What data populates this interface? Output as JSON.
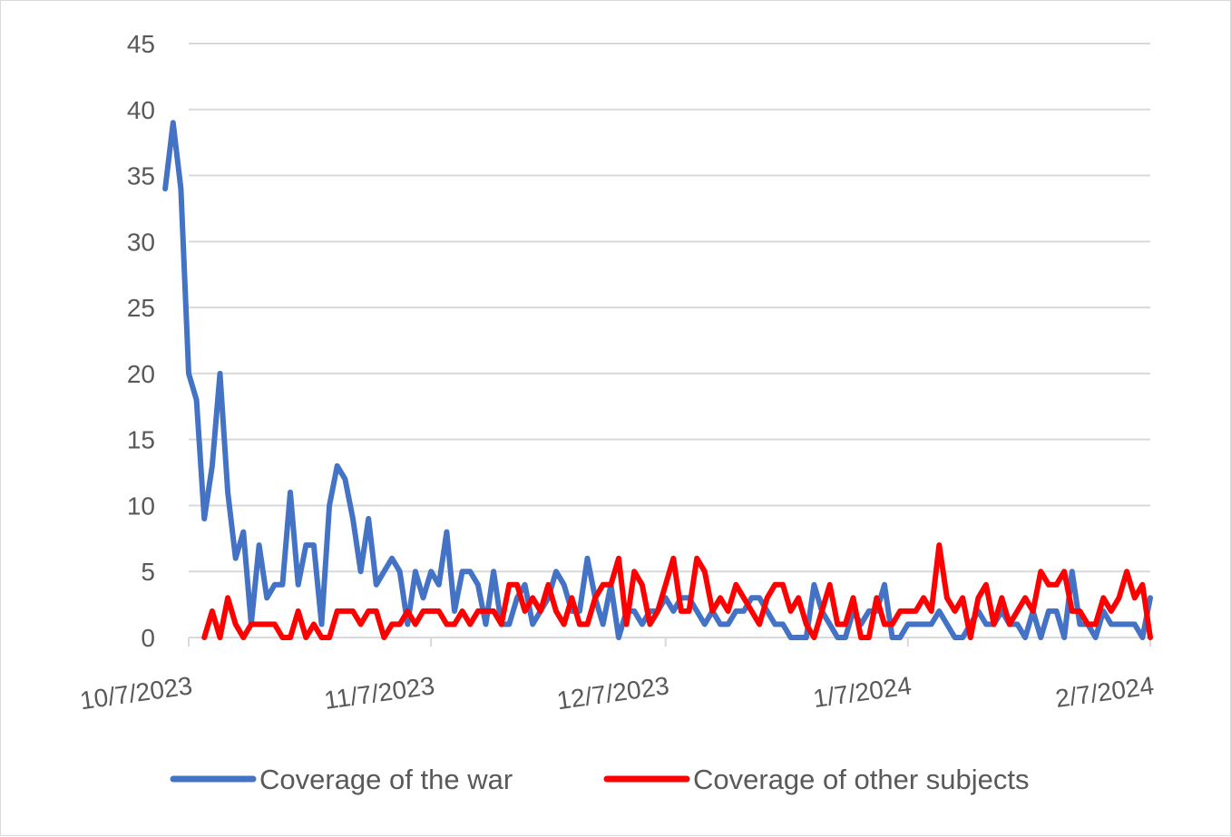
{
  "chart_data": {
    "type": "line",
    "title": "",
    "xlabel": "",
    "ylabel": "",
    "ylim": [
      0,
      45
    ],
    "yticks": [
      0,
      5,
      10,
      15,
      20,
      25,
      30,
      35,
      40,
      45
    ],
    "x_start": "10/7/2023",
    "x_end": "2/7/2024",
    "xticks": [
      "10/7/2023",
      "11/7/2023",
      "12/7/2023",
      "1/7/2024",
      "2/7/2024"
    ],
    "grid": "horizontal",
    "legend_position": "bottom",
    "series": [
      {
        "name": "Coverage of the war",
        "color": "#4472C4",
        "values": [
          34,
          39,
          34,
          20,
          18,
          9,
          13,
          20,
          11,
          6,
          8,
          1,
          7,
          3,
          4,
          4,
          11,
          4,
          7,
          7,
          1,
          10,
          13,
          12,
          9,
          5,
          9,
          4,
          5,
          6,
          5,
          1,
          5,
          3,
          5,
          4,
          8,
          2,
          5,
          5,
          4,
          1,
          5,
          1,
          1,
          3,
          4,
          1,
          2,
          3,
          5,
          4,
          2,
          2,
          6,
          3,
          1,
          4,
          0,
          2,
          2,
          1,
          2,
          2,
          3,
          2,
          3,
          3,
          2,
          1,
          2,
          1,
          1,
          2,
          2,
          3,
          3,
          2,
          1,
          1,
          0,
          0,
          0,
          4,
          2,
          1,
          0,
          0,
          2,
          1,
          2,
          2,
          4,
          0,
          0,
          1,
          1,
          1,
          1,
          2,
          1,
          0,
          0,
          1,
          2,
          1,
          1,
          2,
          1,
          1,
          0,
          2,
          0,
          2,
          2,
          0,
          5,
          1,
          1,
          0,
          2,
          1,
          1,
          1,
          1,
          0,
          3
        ],
        "values_end": "2/7/2024"
      },
      {
        "name": "Coverage of other subjects",
        "color": "#FF0000",
        "values": [
          0,
          2,
          0,
          3,
          1,
          0,
          1,
          1,
          1,
          1,
          0,
          0,
          2,
          0,
          1,
          0,
          0,
          2,
          2,
          2,
          1,
          2,
          2,
          0,
          1,
          1,
          2,
          1,
          2,
          2,
          2,
          1,
          1,
          2,
          1,
          2,
          2,
          2,
          1,
          4,
          4,
          2,
          3,
          2,
          4,
          2,
          1,
          3,
          1,
          1,
          3,
          4,
          4,
          6,
          1,
          5,
          4,
          1,
          2,
          4,
          6,
          2,
          2,
          6,
          5,
          2,
          3,
          2,
          4,
          3,
          2,
          1,
          3,
          4,
          4,
          2,
          3,
          1,
          0,
          2,
          4,
          1,
          1,
          3,
          0,
          0,
          3,
          1,
          1,
          2,
          2,
          2,
          3,
          2,
          7,
          3,
          2,
          3,
          0,
          3,
          4,
          1,
          3,
          1,
          2,
          3,
          2,
          5,
          4,
          4,
          5,
          2,
          2,
          1,
          1,
          3,
          2,
          3,
          5,
          3,
          4,
          0
        ],
        "values_end": "2/7/2024"
      }
    ]
  }
}
